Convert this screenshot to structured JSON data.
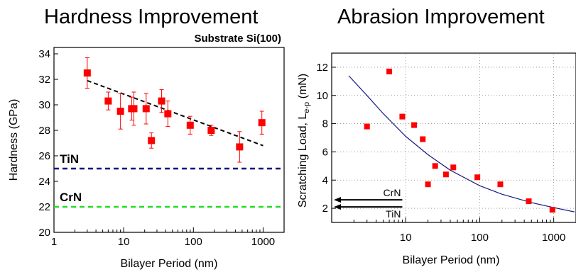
{
  "chart_data": [
    {
      "type": "scatter",
      "title": "Hardness Improvement",
      "annotation": "Substrate Si(100)",
      "xlabel": "Bilayer Period (nm)",
      "ylabel": "Hardness (GPa)",
      "xscale": "log",
      "xlim": [
        1,
        2000
      ],
      "ylim": [
        20,
        34.5
      ],
      "xticks": [
        1,
        10,
        100,
        1000
      ],
      "xtick_labels": [
        "1",
        "10",
        "100",
        "1000"
      ],
      "yticks": [
        20,
        22,
        24,
        26,
        28,
        30,
        32,
        34
      ],
      "ytick_labels": [
        "20",
        "22",
        "24",
        "26",
        "28",
        "30",
        "32",
        "34"
      ],
      "grid": false,
      "series": [
        {
          "x": [
            3,
            6,
            9,
            13,
            14,
            21,
            25,
            35,
            43,
            90,
            180,
            460,
            960
          ],
          "y": [
            32.5,
            30.3,
            29.5,
            29.7,
            29.7,
            29.7,
            27.2,
            30.3,
            29.3,
            28.4,
            28.0,
            26.7,
            28.6
          ],
          "yerr": [
            1.2,
            0.7,
            1.4,
            0.9,
            1.3,
            1.2,
            0.6,
            0.9,
            1.0,
            0.7,
            0.4,
            1.2,
            0.9
          ],
          "color": "#ff0000",
          "marker": "square"
        }
      ],
      "trendline": {
        "x": [
          3,
          1000
        ],
        "y": [
          31.9,
          26.8
        ],
        "color": "#000000",
        "style": "dashed"
      },
      "reference_lines": [
        {
          "label": "TiN",
          "y": 25.0,
          "color": "#00007f"
        },
        {
          "label": "CrN",
          "y": 22.0,
          "color": "#22dd22"
        }
      ]
    },
    {
      "type": "scatter",
      "title": "Abrasion Improvement",
      "xlabel": "Bilayer Period (nm)",
      "ylabel": "Scratching Load, Le-p (mN)",
      "ylabel_main": "Scratching Load, L",
      "ylabel_sub": "e-p",
      "ylabel_unit": " (mN)",
      "xscale": "log",
      "xlim": [
        1,
        2000
      ],
      "ylim": [
        1,
        13
      ],
      "xticks": [
        10,
        100,
        1000
      ],
      "xtick_labels": [
        "10",
        "100",
        "1000"
      ],
      "yticks": [
        2,
        4,
        6,
        8,
        10,
        12
      ],
      "ytick_labels": [
        "2",
        "4",
        "6",
        "8",
        "10",
        "12"
      ],
      "grid": true,
      "series": [
        {
          "x": [
            3,
            6,
            9,
            13,
            17,
            20,
            25,
            35,
            44,
            93,
            190,
            460,
            960
          ],
          "y": [
            7.8,
            11.7,
            8.5,
            7.9,
            6.9,
            3.7,
            5.0,
            4.4,
            4.9,
            4.2,
            3.7,
            2.5,
            1.9
          ],
          "color": "#ff0000",
          "marker": "square"
        }
      ],
      "fit_curve": {
        "x": [
          1.7,
          3,
          5,
          10,
          20,
          40,
          100,
          200,
          500,
          1000,
          1900
        ],
        "y": [
          11.4,
          10.0,
          8.7,
          7.1,
          5.8,
          4.7,
          3.6,
          3.0,
          2.4,
          2.05,
          1.75
        ],
        "color": "#1a1a80"
      },
      "reference_arrows": [
        {
          "label": "CrN",
          "y": 2.6
        },
        {
          "label": "TiN",
          "y": 2.1
        }
      ]
    }
  ]
}
